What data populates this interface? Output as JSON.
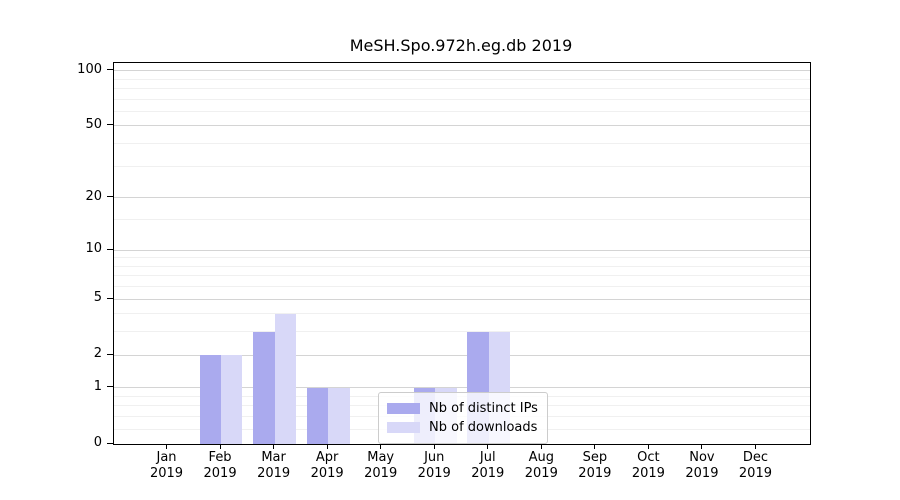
{
  "title": "MeSH.Spo.972h.eg.db 2019",
  "chart_data": {
    "type": "bar",
    "title": "MeSH.Spo.972h.eg.db 2019",
    "categories": [
      "Jan 2019",
      "Feb 2019",
      "Mar 2019",
      "Apr 2019",
      "May 2019",
      "Jun 2019",
      "Jul 2019",
      "Aug 2019",
      "Sep 2019",
      "Oct 2019",
      "Nov 2019",
      "Dec 2019"
    ],
    "series": [
      {
        "name": "Nb of distinct IPs",
        "color": "#aaaaee",
        "values": [
          0,
          2,
          3,
          1,
          0,
          1,
          3,
          0,
          0,
          0,
          0,
          0
        ]
      },
      {
        "name": "Nb of downloads",
        "color": "#d8d8f8",
        "values": [
          0,
          2,
          4,
          1,
          0,
          1,
          3,
          0,
          0,
          0,
          0,
          0
        ]
      }
    ],
    "yscale": "log1p",
    "ylim": [
      0,
      110
    ],
    "yticks": [
      0,
      1,
      2,
      5,
      10,
      20,
      50,
      100
    ],
    "minor_yticks": [
      0.2,
      0.4,
      0.6,
      0.8,
      3,
      4,
      6,
      7,
      8,
      9,
      15,
      30,
      40,
      60,
      70,
      80,
      90
    ],
    "grid": true,
    "legend_position": "lower center",
    "colors": {
      "major_grid": "#d4d4d4",
      "minor_grid": "#f0f0f0",
      "axis": "#000000"
    }
  }
}
